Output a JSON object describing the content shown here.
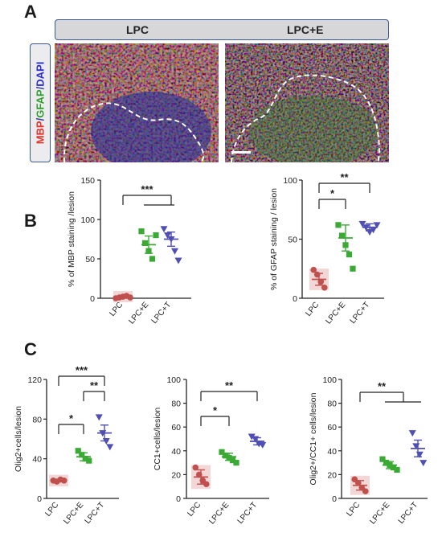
{
  "panels": {
    "a": "A",
    "b": "B",
    "c": "C"
  },
  "header": {
    "left": "LPC",
    "right": "LPC+E"
  },
  "stain_label": {
    "mbp": "MBP",
    "gfap": "GFAP",
    "dapi": "DAPI",
    "sep": "/"
  },
  "colors": {
    "lpc": "#c0504d",
    "lpc_fill": "#f2d2d2",
    "lpc_e": "#3aaa35",
    "lpc_t": "#4f4fb5",
    "mbp": "#e8302b",
    "gfap": "#3aaa35",
    "dapi": "#2b2bd6"
  },
  "chart_data": [
    {
      "id": "mbp",
      "type": "scatter",
      "ylabel": "% of MBP staining /lesion",
      "categories": [
        "LPC",
        "LPC+E",
        "LPC+T"
      ],
      "ylim": [
        0,
        150
      ],
      "yticks": [
        0,
        50,
        100,
        150
      ],
      "groups": [
        {
          "name": "LPC",
          "points": [
            0,
            1,
            2,
            3,
            1
          ],
          "mean": 2,
          "sem": 1
        },
        {
          "name": "LPC+E",
          "points": [
            85,
            70,
            60,
            50,
            80
          ],
          "mean": 68,
          "sem": 11
        },
        {
          "name": "LPC+T",
          "points": [
            88,
            80,
            75,
            60,
            48
          ],
          "mean": 75,
          "sem": 9
        }
      ],
      "significance": [
        {
          "label": "***",
          "from": "LPC",
          "to": [
            "LPC+E",
            "LPC+T"
          ]
        }
      ]
    },
    {
      "id": "gfap",
      "type": "scatter",
      "ylabel": "% of GFAP staining / lesion",
      "categories": [
        "LPC",
        "LPC+E",
        "LPC+T"
      ],
      "ylim": [
        0,
        100
      ],
      "yticks": [
        0,
        50,
        100
      ],
      "groups": [
        {
          "name": "LPC",
          "points": [
            24,
            20,
            14,
            9
          ],
          "mean": 16,
          "sem": 5
        },
        {
          "name": "LPC+E",
          "points": [
            62,
            53,
            45,
            37,
            25
          ],
          "mean": 51,
          "sem": 11
        },
        {
          "name": "LPC+T",
          "points": [
            63,
            60,
            56,
            58,
            62
          ],
          "mean": 60,
          "sem": 3
        }
      ],
      "significance": [
        {
          "label": "*",
          "from": "LPC",
          "to": [
            "LPC+E"
          ]
        },
        {
          "label": "**",
          "from": "LPC",
          "to": [
            "LPC+T"
          ]
        }
      ]
    },
    {
      "id": "olig2",
      "type": "scatter",
      "ylabel": "Olig2+cells/lesion",
      "categories": [
        "LPC",
        "LPC+E",
        "LPC+T"
      ],
      "ylim": [
        0,
        120
      ],
      "yticks": [
        0,
        40,
        80,
        120
      ],
      "groups": [
        {
          "name": "LPC",
          "points": [
            18,
            17,
            19,
            18
          ],
          "mean": 18,
          "sem": 1
        },
        {
          "name": "LPC+E",
          "points": [
            48,
            44,
            40,
            38
          ],
          "mean": 42,
          "sem": 4
        },
        {
          "name": "LPC+T",
          "points": [
            82,
            66,
            58,
            52
          ],
          "mean": 66,
          "sem": 8
        }
      ],
      "significance": [
        {
          "label": "*",
          "from": "LPC",
          "to": [
            "LPC+E"
          ]
        },
        {
          "label": "**",
          "from": "LPC+E",
          "to": [
            "LPC+T"
          ]
        },
        {
          "label": "***",
          "from": "LPC",
          "to": [
            "LPC+T"
          ]
        }
      ]
    },
    {
      "id": "cc1",
      "type": "scatter",
      "ylabel": "CC1+cells/lesion",
      "categories": [
        "LPC",
        "LPC+E",
        "LPC+T"
      ],
      "ylim": [
        0,
        100
      ],
      "yticks": [
        0,
        20,
        40,
        60,
        80,
        100
      ],
      "groups": [
        {
          "name": "LPC",
          "points": [
            26,
            20,
            15,
            12
          ],
          "mean": 18,
          "sem": 6
        },
        {
          "name": "LPC+E",
          "points": [
            39,
            36,
            34,
            32,
            30
          ],
          "mean": 35,
          "sem": 3
        },
        {
          "name": "LPC+T",
          "points": [
            52,
            50,
            46,
            45
          ],
          "mean": 48,
          "sem": 3
        }
      ],
      "significance": [
        {
          "label": "*",
          "from": "LPC",
          "to": [
            "LPC+E"
          ]
        },
        {
          "label": "**",
          "from": "LPC",
          "to": [
            "LPC+T"
          ]
        }
      ]
    },
    {
      "id": "olig2cc1",
      "type": "scatter",
      "ylabel": "Olig2+/CC1+ cells/lesion",
      "categories": [
        "LPC",
        "LPC+E",
        "LPC+T"
      ],
      "ylim": [
        0,
        100
      ],
      "yticks": [
        0,
        20,
        40,
        60,
        80,
        100
      ],
      "groups": [
        {
          "name": "LPC",
          "points": [
            16,
            13,
            9,
            6
          ],
          "mean": 11,
          "sem": 4
        },
        {
          "name": "LPC+E",
          "points": [
            33,
            30,
            28,
            26,
            24
          ],
          "mean": 28,
          "sem": 3
        },
        {
          "name": "LPC+T",
          "points": [
            55,
            44,
            37,
            30
          ],
          "mean": 42,
          "sem": 7
        }
      ],
      "significance": [
        {
          "label": "**",
          "from": "LPC",
          "to": [
            "LPC+E",
            "LPC+T"
          ]
        }
      ]
    }
  ]
}
